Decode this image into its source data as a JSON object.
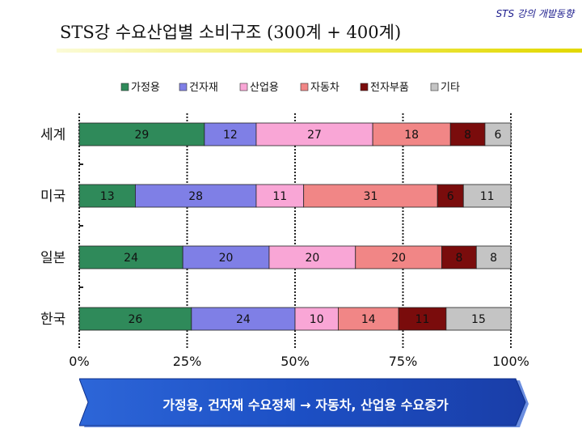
{
  "header_note": "STS 강의 개발동향",
  "page_title": "STS강 수요산업별 소비구조 (300계 + 400계)",
  "banner": {
    "text": "가정용, 건자재 수요정체 → 자동차, 산업용 수요증가"
  },
  "chart_data": {
    "type": "bar",
    "orientation": "horizontal",
    "stacked": true,
    "percent": true,
    "categories": [
      "세계",
      "미국",
      "일본",
      "한국"
    ],
    "series": [
      {
        "name": "가정용",
        "color": "#2f8a5a",
        "values": [
          29,
          13,
          24,
          26
        ]
      },
      {
        "name": "건자재",
        "color": "#7f7fe6",
        "values": [
          12,
          28,
          20,
          24
        ]
      },
      {
        "name": "산업용",
        "color": "#f9a6d6",
        "values": [
          27,
          11,
          20,
          10
        ]
      },
      {
        "name": "자동차",
        "color": "#f18686",
        "values": [
          18,
          31,
          20,
          14
        ]
      },
      {
        "name": "전자부품",
        "color": "#7a0c0c",
        "values": [
          8,
          6,
          8,
          11
        ]
      },
      {
        "name": "기타",
        "color": "#c4c4c4",
        "values": [
          6,
          11,
          8,
          15
        ]
      }
    ],
    "x_ticks": [
      "0%",
      "25%",
      "50%",
      "75%",
      "100%"
    ],
    "xlim": [
      0,
      100
    ],
    "legend_position": "top",
    "grid": "vertical-dashed"
  }
}
